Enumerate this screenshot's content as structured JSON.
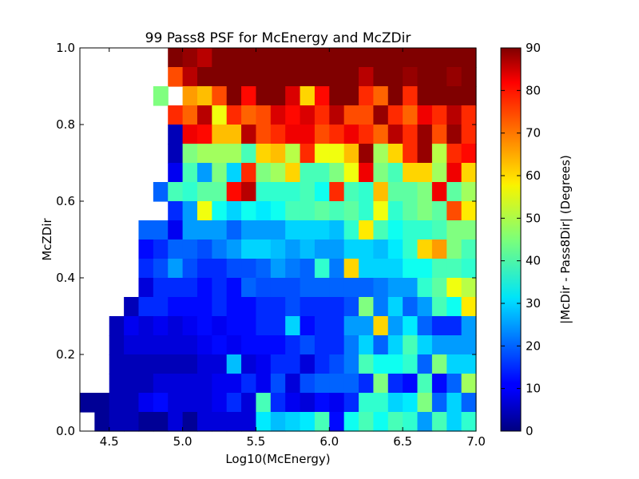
{
  "chart_data": {
    "type": "heatmap",
    "title": "99 Pass8 PSF for McEnergy and McZDir",
    "xlabel": "Log10(McEnergy)",
    "ylabel": "McZDir",
    "xlim": [
      4.3,
      7.0
    ],
    "ylim": [
      0.0,
      1.0
    ],
    "xticks": [
      "4.5",
      "5.0",
      "5.5",
      "6.0",
      "6.5",
      "7.0"
    ],
    "yticks": [
      "0.0",
      "0.2",
      "0.4",
      "0.6",
      "0.8",
      "1.0"
    ],
    "colorbar": {
      "label": "|McDir - Pass8Dir| (Degrees)",
      "range": [
        0,
        90
      ],
      "ticks": [
        "0",
        "10",
        "20",
        "30",
        "40",
        "50",
        "60",
        "70",
        "80",
        "90"
      ],
      "colormap": "jet"
    },
    "grid": false,
    "x_bin_start": 4.3,
    "x_bin_width": 0.1,
    "y_bin_start": 0.0,
    "y_bin_width": 0.05,
    "z_note": "rows listed from McZDir 0.95-1.00 (top) down to 0.00-0.05 (bottom); null = empty bin",
    "z": [
      [
        null,
        null,
        null,
        null,
        null,
        null,
        90,
        88,
        85,
        90,
        90,
        90,
        90,
        90,
        90,
        90,
        90,
        90,
        90,
        90,
        90,
        90,
        90,
        90,
        90,
        90,
        90
      ],
      [
        null,
        null,
        null,
        null,
        null,
        null,
        72,
        85,
        90,
        90,
        90,
        90,
        90,
        90,
        90,
        90,
        90,
        90,
        90,
        85,
        90,
        90,
        88,
        90,
        90,
        88,
        90
      ],
      [
        null,
        null,
        null,
        null,
        null,
        45,
        null,
        65,
        62,
        72,
        90,
        78,
        90,
        90,
        82,
        60,
        78,
        90,
        90,
        75,
        70,
        90,
        75,
        90,
        90,
        90,
        90
      ],
      [
        null,
        null,
        null,
        null,
        null,
        null,
        75,
        70,
        85,
        55,
        75,
        70,
        72,
        82,
        78,
        82,
        75,
        85,
        72,
        72,
        88,
        75,
        70,
        80,
        75,
        85,
        75
      ],
      [
        null,
        null,
        null,
        null,
        null,
        null,
        5,
        80,
        78,
        62,
        62,
        85,
        72,
        75,
        80,
        80,
        72,
        75,
        80,
        75,
        70,
        85,
        75,
        88,
        72,
        88,
        75
      ],
      [
        null,
        null,
        null,
        null,
        null,
        null,
        5,
        45,
        48,
        48,
        48,
        40,
        60,
        62,
        50,
        75,
        55,
        55,
        62,
        88,
        48,
        60,
        75,
        88,
        50,
        75,
        78
      ],
      [
        null,
        null,
        null,
        null,
        null,
        null,
        10,
        40,
        25,
        45,
        30,
        75,
        45,
        48,
        60,
        40,
        40,
        45,
        55,
        80,
        45,
        40,
        60,
        60,
        48,
        80,
        60
      ],
      [
        null,
        null,
        null,
        null,
        null,
        20,
        40,
        38,
        42,
        42,
        78,
        85,
        38,
        38,
        38,
        40,
        35,
        75,
        40,
        38,
        62,
        42,
        42,
        45,
        80,
        42,
        48
      ],
      [
        null,
        null,
        null,
        null,
        null,
        null,
        15,
        25,
        55,
        35,
        30,
        35,
        32,
        35,
        40,
        40,
        42,
        40,
        42,
        38,
        55,
        38,
        42,
        45,
        42,
        72,
        58
      ],
      [
        null,
        null,
        null,
        null,
        20,
        20,
        10,
        25,
        25,
        25,
        20,
        25,
        25,
        25,
        30,
        30,
        30,
        28,
        38,
        58,
        40,
        35,
        38,
        38,
        40,
        45,
        45
      ],
      [
        null,
        null,
        null,
        null,
        12,
        15,
        20,
        20,
        18,
        22,
        25,
        30,
        30,
        28,
        25,
        28,
        25,
        25,
        30,
        30,
        28,
        32,
        38,
        60,
        65,
        45,
        40
      ],
      [
        null,
        null,
        null,
        null,
        15,
        18,
        25,
        18,
        15,
        15,
        18,
        18,
        20,
        25,
        22,
        20,
        38,
        22,
        60,
        30,
        30,
        30,
        35,
        35,
        40,
        40,
        38
      ],
      [
        null,
        null,
        null,
        null,
        8,
        15,
        15,
        15,
        12,
        15,
        12,
        20,
        18,
        18,
        18,
        20,
        20,
        20,
        20,
        20,
        22,
        25,
        25,
        38,
        42,
        55,
        50
      ],
      [
        null,
        null,
        null,
        5,
        15,
        15,
        12,
        12,
        12,
        15,
        12,
        12,
        15,
        15,
        18,
        15,
        15,
        15,
        18,
        45,
        22,
        30,
        20,
        25,
        40,
        35,
        58
      ],
      [
        null,
        null,
        5,
        10,
        8,
        10,
        8,
        10,
        12,
        10,
        12,
        12,
        15,
        15,
        30,
        12,
        15,
        15,
        25,
        25,
        60,
        25,
        32,
        20,
        15,
        15,
        25
      ],
      [
        null,
        null,
        5,
        8,
        8,
        8,
        8,
        8,
        10,
        12,
        10,
        12,
        12,
        12,
        15,
        18,
        15,
        15,
        22,
        30,
        20,
        30,
        40,
        30,
        25,
        25,
        25
      ],
      [
        null,
        null,
        5,
        5,
        5,
        5,
        5,
        5,
        8,
        8,
        28,
        8,
        10,
        15,
        15,
        8,
        15,
        18,
        22,
        40,
        35,
        35,
        38,
        20,
        45,
        30,
        30
      ],
      [
        null,
        null,
        5,
        5,
        5,
        8,
        8,
        8,
        8,
        10,
        10,
        15,
        10,
        18,
        8,
        18,
        20,
        20,
        20,
        15,
        45,
        15,
        12,
        40,
        12,
        20,
        48
      ],
      [
        2,
        2,
        5,
        5,
        10,
        12,
        8,
        8,
        8,
        10,
        15,
        8,
        40,
        15,
        10,
        8,
        12,
        10,
        15,
        38,
        38,
        30,
        32,
        45,
        20,
        30,
        20
      ],
      [
        null,
        2,
        5,
        5,
        2,
        2,
        8,
        2,
        8,
        8,
        8,
        8,
        32,
        28,
        30,
        32,
        40,
        12,
        35,
        40,
        35,
        40,
        38,
        25,
        40,
        30,
        38
      ]
    ]
  }
}
